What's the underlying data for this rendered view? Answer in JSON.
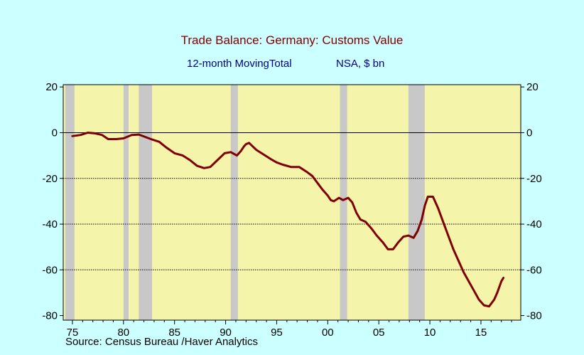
{
  "title": "Trade Balance: Germany: Customs Value",
  "subtitle_left": "12-month MovingTotal",
  "subtitle_right": "NSA, $ bn",
  "source": "Source:  Census Bureau /Haver Analytics",
  "colors": {
    "background": "#ccffff",
    "plot_area": "#f4f4aa",
    "recession": "#c8c8c8",
    "line": "#800000",
    "title": "#800000",
    "subtitle": "#000080"
  },
  "chart_data": {
    "type": "line",
    "title": "Trade Balance: Germany: Customs Value",
    "subtitle": "12-month MovingTotal    NSA, $ bn",
    "xlabel": "",
    "ylabel": "",
    "xlim": [
      1974.1,
      2018.9
    ],
    "ylim": [
      -82,
      21
    ],
    "x_ticks": [
      1975,
      1980,
      1985,
      1990,
      1995,
      2000,
      2005,
      2010,
      2015
    ],
    "x_tick_labels": [
      "75",
      "80",
      "85",
      "90",
      "95",
      "00",
      "05",
      "10",
      "15"
    ],
    "y_ticks": [
      20,
      0,
      -20,
      -40,
      -60,
      -80
    ],
    "y_tick_labels": [
      "20",
      "0",
      "-20",
      "-40",
      "-60",
      "-80"
    ],
    "gridlines_y": [
      0,
      -20,
      -40,
      -60
    ],
    "recession_bands": [
      [
        1974.3,
        1975.2
      ],
      [
        1980.0,
        1980.5
      ],
      [
        1981.5,
        1982.8
      ],
      [
        1990.5,
        1991.2
      ],
      [
        2001.2,
        2001.9
      ],
      [
        2007.9,
        2009.5
      ]
    ],
    "series": [
      {
        "name": "",
        "x": [
          1975.0,
          1975.8,
          1976.5,
          1977.2,
          1977.9,
          1978.5,
          1979.3,
          1980.0,
          1980.8,
          1981.5,
          1982.2,
          1982.8,
          1983.5,
          1984.2,
          1985.0,
          1985.8,
          1986.5,
          1987.2,
          1987.9,
          1988.5,
          1989.2,
          1989.9,
          1990.5,
          1991.1,
          1991.5,
          1991.8,
          1992.0,
          1992.3,
          1993.0,
          1993.7,
          1994.4,
          1995.0,
          1995.6,
          1996.4,
          1997.2,
          1997.9,
          1998.5,
          1999.0,
          1999.5,
          2000.0,
          2000.3,
          2000.6,
          2001.1,
          2001.5,
          2002.0,
          2002.4,
          2002.8,
          2003.2,
          2003.7,
          2004.3,
          2004.8,
          2005.4,
          2005.9,
          2006.4,
          2006.9,
          2007.4,
          2007.9,
          2008.4,
          2008.8,
          2009.2,
          2009.5,
          2009.8,
          2010.3,
          2010.8,
          2011.3,
          2011.8,
          2012.3,
          2012.8,
          2013.3,
          2013.8,
          2014.3,
          2014.8,
          2015.3,
          2015.8,
          2016.3,
          2016.6,
          2017.0,
          2017.2
        ],
        "values": [
          -1.5,
          -1.0,
          0.0,
          -0.3,
          -1.0,
          -2.8,
          -2.8,
          -2.5,
          -1.0,
          -0.8,
          -2.0,
          -3.0,
          -4.0,
          -6.5,
          -9.0,
          -10.0,
          -12.0,
          -14.5,
          -15.5,
          -15.0,
          -12.0,
          -9.0,
          -8.5,
          -10.0,
          -8.0,
          -6.0,
          -5.0,
          -4.5,
          -7.5,
          -9.5,
          -11.5,
          -13.0,
          -14.0,
          -15.0,
          -15.0,
          -17.0,
          -19.0,
          -22.0,
          -25.0,
          -27.5,
          -29.5,
          -30.0,
          -28.5,
          -29.5,
          -28.5,
          -30.5,
          -35.0,
          -38.0,
          -39.0,
          -42.0,
          -45.0,
          -48.0,
          -51.0,
          -51.0,
          -48.0,
          -45.5,
          -45.0,
          -46.0,
          -43.0,
          -38.0,
          -32.0,
          -28.0,
          -28.0,
          -33.0,
          -39.0,
          -45.0,
          -51.0,
          -56.0,
          -61.0,
          -65.0,
          -69.0,
          -73.0,
          -75.5,
          -76.0,
          -73.0,
          -70.0,
          -65.0,
          -63.5
        ]
      }
    ]
  }
}
